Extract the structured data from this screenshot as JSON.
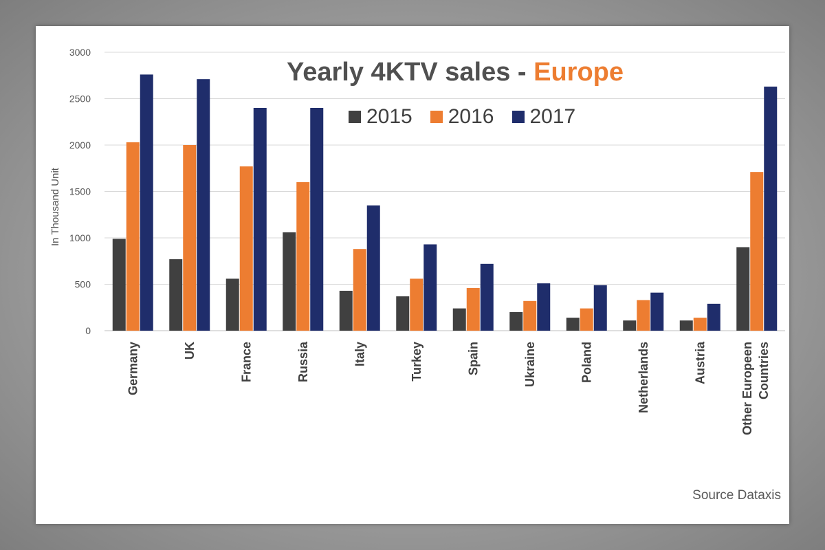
{
  "chart_data": {
    "type": "bar",
    "title": "Yearly 4KTV sales - Europe",
    "title_parts": {
      "main": "Yearly 4KTV sales - ",
      "accent": "Europe"
    },
    "ylabel": "In Thousand Unit",
    "xlabel": "",
    "ylim": [
      0,
      3000
    ],
    "yticks": [
      0,
      500,
      1000,
      1500,
      2000,
      2500,
      3000
    ],
    "grid": true,
    "legend_position": "top-center",
    "categories": [
      "Germany",
      "UK",
      "France",
      "Russia",
      "Italy",
      "Turkey",
      "Spain",
      "Ukraine",
      "Poland",
      "Netherlands",
      "Austria",
      "Other Europeen Countries"
    ],
    "category_lines": [
      [
        "Germany"
      ],
      [
        "UK"
      ],
      [
        "France"
      ],
      [
        "Russia"
      ],
      [
        "Italy"
      ],
      [
        "Turkey"
      ],
      [
        "Spain"
      ],
      [
        "Ukraine"
      ],
      [
        "Poland"
      ],
      [
        "Netherlands"
      ],
      [
        "Austria"
      ],
      [
        "Other Europeen",
        "Countries"
      ]
    ],
    "series": [
      {
        "name": "2015",
        "color": "#404040",
        "values": [
          990,
          770,
          560,
          1060,
          430,
          370,
          240,
          200,
          140,
          110,
          110,
          900
        ]
      },
      {
        "name": "2016",
        "color": "#ED7D31",
        "values": [
          2030,
          2000,
          1770,
          1600,
          880,
          560,
          460,
          320,
          240,
          330,
          140,
          1710
        ]
      },
      {
        "name": "2017",
        "color": "#1F2D6B",
        "values": [
          2760,
          2710,
          2400,
          2400,
          1350,
          930,
          720,
          510,
          490,
          410,
          290,
          2630
        ]
      }
    ]
  },
  "source": "Source Dataxis"
}
